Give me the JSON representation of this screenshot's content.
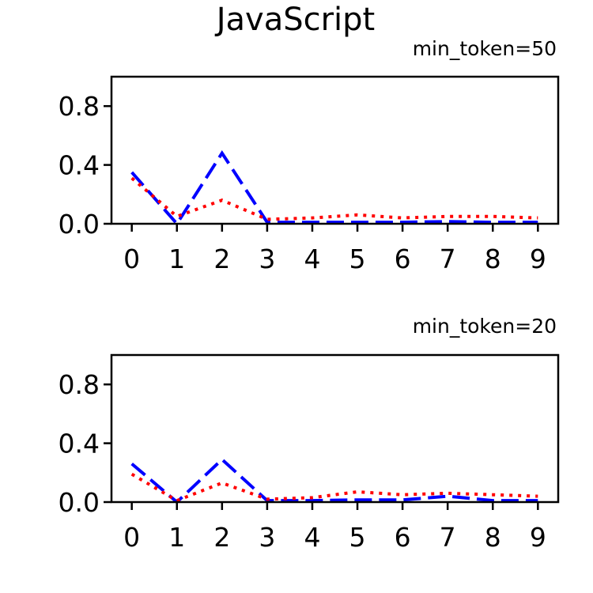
{
  "chart_data": {
    "title": "JavaScript",
    "panels": [
      {
        "type": "line",
        "subtitle": "min_token=50",
        "x": [
          0,
          1,
          2,
          3,
          4,
          5,
          6,
          7,
          8,
          9
        ],
        "xticks": [
          "0",
          "1",
          "2",
          "3",
          "4",
          "5",
          "6",
          "7",
          "8",
          "9"
        ],
        "yticks": [
          "0.0",
          "0.4",
          "0.8"
        ],
        "ylim": [
          0,
          1.0
        ],
        "xlim": [
          -0.45,
          9.45
        ],
        "series": [
          {
            "style": "dashed",
            "color": "#0000ff",
            "values": [
              0.35,
              0.0,
              0.48,
              0.01,
              0.01,
              0.01,
              0.01,
              0.015,
              0.01,
              0.01
            ]
          },
          {
            "style": "dotted",
            "color": "#ff0000",
            "values": [
              0.31,
              0.05,
              0.16,
              0.03,
              0.04,
              0.06,
              0.04,
              0.05,
              0.05,
              0.04
            ]
          }
        ]
      },
      {
        "type": "line",
        "subtitle": "min_token=20",
        "x": [
          0,
          1,
          2,
          3,
          4,
          5,
          6,
          7,
          8,
          9
        ],
        "xticks": [
          "0",
          "1",
          "2",
          "3",
          "4",
          "5",
          "6",
          "7",
          "8",
          "9"
        ],
        "yticks": [
          "0.0",
          "0.4",
          "0.8"
        ],
        "ylim": [
          0,
          1.0
        ],
        "xlim": [
          -0.45,
          9.45
        ],
        "series": [
          {
            "style": "dashed",
            "color": "#0000ff",
            "values": [
              0.26,
              0.0,
              0.29,
              0.01,
              0.01,
              0.015,
              0.015,
              0.04,
              0.01,
              0.01
            ]
          },
          {
            "style": "dotted",
            "color": "#ff0000",
            "values": [
              0.19,
              0.01,
              0.13,
              0.02,
              0.03,
              0.07,
              0.05,
              0.06,
              0.05,
              0.04
            ]
          }
        ]
      }
    ]
  }
}
